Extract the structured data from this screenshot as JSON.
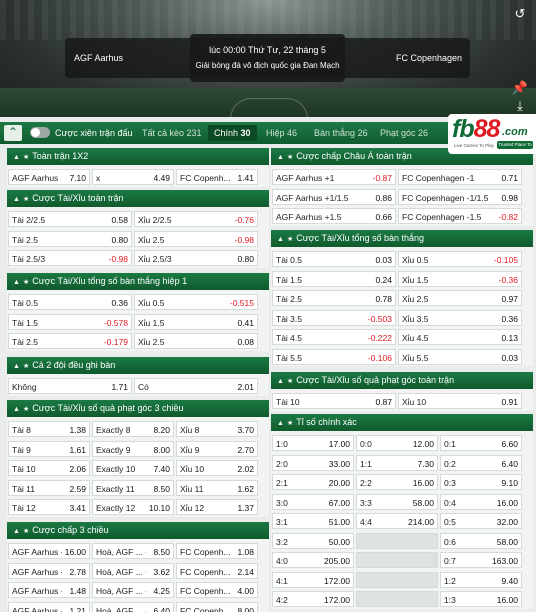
{
  "hero": {
    "home_team": "AGF Aarhus",
    "away_team": "FC Copenhagen",
    "time": "lúc 00:00 Thứ Tư, 22 tháng 5",
    "league": "Giải bóng đá vô địch quốc gia Đan Mạch",
    "icons": [
      "refresh-icon",
      "pin-icon",
      "download-icon"
    ]
  },
  "tabbar": {
    "parlay_label": "Cược xiên trận đấu",
    "tabs": [
      {
        "label": "Tất cả kèo",
        "count": "231"
      },
      {
        "label": "Chính",
        "count": "30"
      },
      {
        "label": "Hiệp",
        "count": "46"
      },
      {
        "label": "Bàn thắng",
        "count": "26"
      },
      {
        "label": "Phạt góc",
        "count": "26"
      }
    ]
  },
  "logo": {
    "fb": "fb",
    "num": "88",
    "com": ".com",
    "tagline": "Live Games To Play",
    "badge": "Trusted Place To Bet"
  },
  "sections": {
    "s1x2": {
      "title": "Toàn trận 1X2",
      "rows": [
        [
          {
            "l": "AGF Aarhus",
            "o": "7.10"
          },
          {
            "l": "x",
            "o": "4.49"
          },
          {
            "l": "FC Copenh...",
            "o": "1.41"
          }
        ]
      ]
    },
    "ou": {
      "title": "Cược Tài/Xỉu toàn trận",
      "rows": [
        [
          {
            "l": "Tài 2/2.5",
            "o": "0.58"
          },
          {
            "l": "Xỉu 2/2.5",
            "o": "-0.76"
          }
        ],
        [
          {
            "l": "Tài 2.5",
            "o": "0.80"
          },
          {
            "l": "Xỉu 2.5",
            "o": "-0.98"
          }
        ],
        [
          {
            "l": "Tài 2.5/3",
            "o": "-0.98"
          },
          {
            "l": "Xỉu 2.5/3",
            "o": "0.80"
          }
        ]
      ]
    },
    "ou_h1": {
      "title": "Cược Tài/Xỉu tổng số bàn thắng hiệp 1",
      "rows": [
        [
          {
            "l": "Tài 0.5",
            "o": "0.36"
          },
          {
            "l": "Xỉu 0.5",
            "o": "-0.515"
          }
        ],
        [
          {
            "l": "Tài 1.5",
            "o": "-0.578"
          },
          {
            "l": "Xỉu 1.5",
            "o": "0.41"
          }
        ],
        [
          {
            "l": "Tài 2.5",
            "o": "-0.179"
          },
          {
            "l": "Xỉu 2.5",
            "o": "0.08"
          }
        ]
      ]
    },
    "btts": {
      "title": "Cả 2 đội đều ghi bàn",
      "rows": [
        [
          {
            "l": "Không",
            "o": "1.71"
          },
          {
            "l": "Có",
            "o": "2.01"
          }
        ]
      ]
    },
    "corners3": {
      "title": "Cược Tài/Xỉu số quả phạt góc 3 chiều",
      "rows": [
        [
          {
            "l": "Tài 8",
            "o": "1.38"
          },
          {
            "l": "Exactly 8",
            "o": "8.20"
          },
          {
            "l": "Xỉu 8",
            "o": "3.70"
          }
        ],
        [
          {
            "l": "Tài 9",
            "o": "1.61"
          },
          {
            "l": "Exactly 9",
            "o": "8.00"
          },
          {
            "l": "Xỉu 9",
            "o": "2.70"
          }
        ],
        [
          {
            "l": "Tài 10",
            "o": "2.06"
          },
          {
            "l": "Exactly 10",
            "o": "7.40"
          },
          {
            "l": "Xỉu 10",
            "o": "2.02"
          }
        ],
        [
          {
            "l": "Tài 11",
            "o": "2.59"
          },
          {
            "l": "Exactly 11",
            "o": "8.50"
          },
          {
            "l": "Xỉu 11",
            "o": "1.62"
          }
        ],
        [
          {
            "l": "Tài 12",
            "o": "3.41"
          },
          {
            "l": "Exactly 12",
            "o": "10.10"
          },
          {
            "l": "Xỉu 12",
            "o": "1.37"
          }
        ]
      ]
    },
    "hcp3": {
      "title": "Cược chấp 3 chiều",
      "rows": [
        [
          {
            "l": "AGF Aarhus -1",
            "o": "16.00"
          },
          {
            "l": "Hoà, AGF ...  -1",
            "o": "8.50"
          },
          {
            "l": "FC Copenh...  +1",
            "o": "1.08"
          }
        ],
        [
          {
            "l": "AGF Aarhus +1",
            "o": "2.78"
          },
          {
            "l": "Hoà, AGF ...  +1",
            "o": "3.62"
          },
          {
            "l": "FC Copenh...  -1",
            "o": "2.14"
          }
        ],
        [
          {
            "l": "AGF Aarhus +2",
            "o": "1.48"
          },
          {
            "l": "Hoà, AGF ...  +2",
            "o": "4.25"
          },
          {
            "l": "FC Copenh...  -2",
            "o": "4.00"
          }
        ],
        [
          {
            "l": "AGF Aarhus +3",
            "o": "1.21"
          },
          {
            "l": "Hoà, AGF ...  +3",
            "o": "6.40"
          },
          {
            "l": "FC Copenh...  -3",
            "o": "8.00"
          }
        ]
      ]
    },
    "asian": {
      "title": "Cược chấp Châu Á toàn trận",
      "rows": [
        [
          {
            "l": "AGF Aarhus +1",
            "o": "-0.87"
          },
          {
            "l": "FC Copenhagen -1",
            "o": "0.71"
          }
        ],
        [
          {
            "l": "AGF Aarhus +1/1.5",
            "o": "0.86"
          },
          {
            "l": "FC Copenhagen -1/1.5",
            "o": "0.98"
          }
        ],
        [
          {
            "l": "AGF Aarhus +1.5",
            "o": "0.66"
          },
          {
            "l": "FC Copenhagen -1.5",
            "o": "-0.82"
          }
        ]
      ]
    },
    "ou_goals": {
      "title": "Cược Tài/Xỉu tổng số bàn thắng",
      "rows": [
        [
          {
            "l": "Tài 0.5",
            "o": "0.03"
          },
          {
            "l": "Xỉu 0.5",
            "o": "-0.105"
          }
        ],
        [
          {
            "l": "Tài 1.5",
            "o": "0.24"
          },
          {
            "l": "Xỉu 1.5",
            "o": "-0.36"
          }
        ],
        [
          {
            "l": "Tài 2.5",
            "o": "0.78"
          },
          {
            "l": "Xỉu 2.5",
            "o": "0.97"
          }
        ],
        [
          {
            "l": "Tài 3.5",
            "o": "-0.503"
          },
          {
            "l": "Xỉu 3.5",
            "o": "0.36"
          }
        ],
        [
          {
            "l": "Tài 4.5",
            "o": "-0.222"
          },
          {
            "l": "Xỉu 4.5",
            "o": "0.13"
          }
        ],
        [
          {
            "l": "Tài 5.5",
            "o": "-0.106"
          },
          {
            "l": "Xỉu 5.5",
            "o": "0.03"
          }
        ]
      ]
    },
    "corners_ou": {
      "title": "Cược Tài/Xỉu số quả phạt góc toàn trận",
      "rows": [
        [
          {
            "l": "Tài 10",
            "o": "0.87"
          },
          {
            "l": "Xỉu 10",
            "o": "0.91"
          }
        ]
      ]
    },
    "correct": {
      "title": "Tỉ số chính xác",
      "rows": [
        [
          {
            "l": "1:0",
            "o": "17.00"
          },
          {
            "l": "0:0",
            "o": "12.00"
          },
          {
            "l": "0:1",
            "o": "6.60"
          }
        ],
        [
          {
            "l": "2:0",
            "o": "33.00"
          },
          {
            "l": "1:1",
            "o": "7.30"
          },
          {
            "l": "0:2",
            "o": "6.40"
          }
        ],
        [
          {
            "l": "2:1",
            "o": "20.00"
          },
          {
            "l": "2:2",
            "o": "16.00"
          },
          {
            "l": "0:3",
            "o": "9.10"
          }
        ],
        [
          {
            "l": "3:0",
            "o": "67.00"
          },
          {
            "l": "3:3",
            "o": "58.00"
          },
          {
            "l": "0:4",
            "o": "16.00"
          }
        ],
        [
          {
            "l": "3:1",
            "o": "51.00"
          },
          {
            "l": "4:4",
            "o": "214.00"
          },
          {
            "l": "0:5",
            "o": "32.00"
          }
        ],
        [
          {
            "l": "3:2",
            "o": "50.00"
          },
          null,
          {
            "l": "0:6",
            "o": "58.00"
          }
        ],
        [
          {
            "l": "4:0",
            "o": "205.00"
          },
          null,
          {
            "l": "0:7",
            "o": "163.00"
          }
        ],
        [
          {
            "l": "4:1",
            "o": "172.00"
          },
          null,
          {
            "l": "1:2",
            "o": "9.40"
          }
        ],
        [
          {
            "l": "4:2",
            "o": "172.00"
          },
          null,
          {
            "l": "1:3",
            "o": "16.00"
          }
        ]
      ]
    }
  }
}
